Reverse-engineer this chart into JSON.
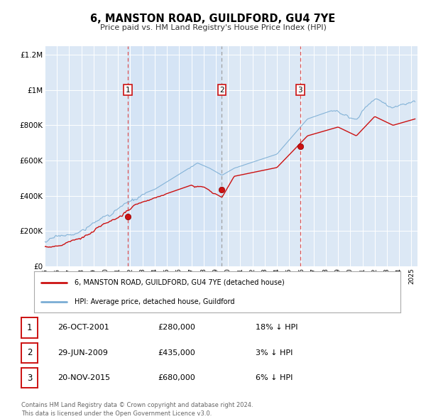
{
  "title": "6, MANSTON ROAD, GUILDFORD, GU4 7YE",
  "subtitle": "Price paid vs. HM Land Registry's House Price Index (HPI)",
  "background_color": "#ffffff",
  "plot_bg_color": "#dce8f5",
  "grid_color": "#ffffff",
  "hpi_color": "#7aadd4",
  "price_color": "#cc1111",
  "x_start": 1995.0,
  "x_end": 2025.5,
  "y_min": 0,
  "y_max": 1250000,
  "transactions": [
    {
      "year": 2001.82,
      "price": 280000,
      "label": "1"
    },
    {
      "year": 2009.49,
      "price": 435000,
      "label": "2"
    },
    {
      "year": 2015.9,
      "price": 680000,
      "label": "3"
    }
  ],
  "vlines": [
    {
      "year": 2001.82,
      "style": "dashed_red"
    },
    {
      "year": 2009.49,
      "style": "dashed_gray"
    },
    {
      "year": 2015.9,
      "style": "dashed_red"
    }
  ],
  "legend_items": [
    {
      "label": "6, MANSTON ROAD, GUILDFORD, GU4 7YE (detached house)",
      "color": "#cc1111"
    },
    {
      "label": "HPI: Average price, detached house, Guildford",
      "color": "#7aadd4"
    }
  ],
  "table_rows": [
    {
      "num": "1",
      "date": "26-OCT-2001",
      "price": "£280,000",
      "note": "18% ↓ HPI"
    },
    {
      "num": "2",
      "date": "29-JUN-2009",
      "price": "£435,000",
      "note": "3% ↓ HPI"
    },
    {
      "num": "3",
      "date": "20-NOV-2015",
      "price": "£680,000",
      "note": "6% ↓ HPI"
    }
  ],
  "footer": "Contains HM Land Registry data © Crown copyright and database right 2024.\nThis data is licensed under the Open Government Licence v3.0.",
  "yticks": [
    0,
    200000,
    400000,
    600000,
    800000,
    1000000,
    1200000
  ],
  "ytick_labels": [
    "£0",
    "£200K",
    "£400K",
    "£600K",
    "£800K",
    "£1M",
    "£1.2M"
  ],
  "xticks": [
    1995,
    1996,
    1997,
    1998,
    1999,
    2000,
    2001,
    2002,
    2003,
    2004,
    2005,
    2006,
    2007,
    2008,
    2009,
    2010,
    2011,
    2012,
    2013,
    2014,
    2015,
    2016,
    2017,
    2018,
    2019,
    2020,
    2021,
    2022,
    2023,
    2024,
    2025
  ]
}
